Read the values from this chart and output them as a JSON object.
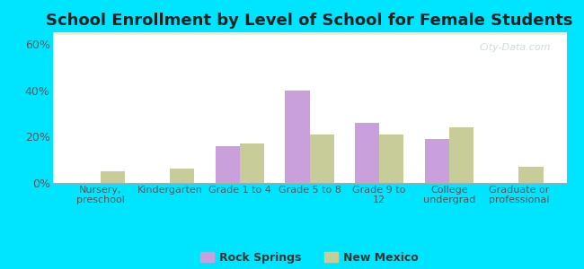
{
  "title": "School Enrollment by Level of School for Female Students",
  "categories": [
    "Nursery,\npreschool",
    "Kindergarten",
    "Grade 1 to 4",
    "Grade 5 to 8",
    "Grade 9 to\n12",
    "College\nundergrad",
    "Graduate or\nprofessional"
  ],
  "rock_springs": [
    0,
    0,
    16,
    40,
    26,
    19,
    0
  ],
  "new_mexico": [
    5,
    6,
    17,
    21,
    21,
    24,
    7
  ],
  "rock_springs_color": "#c9a0dc",
  "new_mexico_color": "#c8cc99",
  "background_outer": "#00e5ff",
  "ylim": [
    0,
    65
  ],
  "yticks": [
    0,
    20,
    40,
    60
  ],
  "ytick_labels": [
    "0%",
    "20%",
    "40%",
    "60%"
  ],
  "title_fontsize": 13,
  "legend_labels": [
    "Rock Springs",
    "New Mexico"
  ],
  "bar_width": 0.35,
  "grad_top": "#f5fff5",
  "grad_bot": "#dff0df"
}
